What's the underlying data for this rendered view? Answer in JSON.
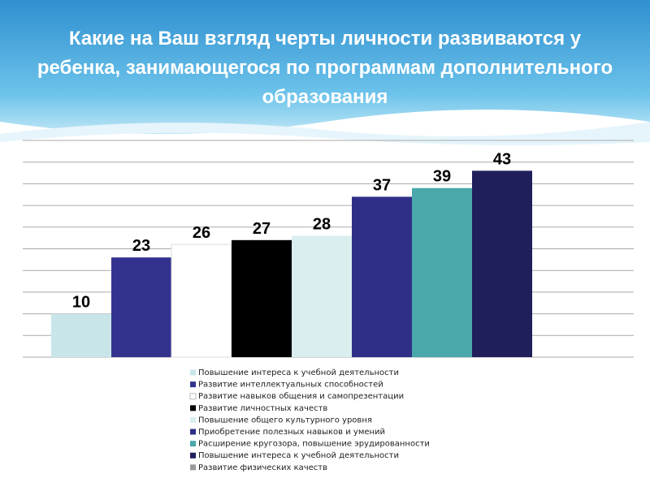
{
  "chart_data": {
    "type": "bar",
    "title": "Какие на Ваш взгляд черты личности развиваются у ребенка, занимающегося по программам дополнительного образования",
    "series": [
      {
        "name": "Повышение интереса к учебной деятельности",
        "color": "#c8e6e9",
        "values": [
          10
        ]
      },
      {
        "name": "Развитие интеллектуальных способностей",
        "color": "#33338f",
        "values": [
          23
        ]
      },
      {
        "name": "Развитие навыков общения и самопрезентации",
        "color": "#ffffff",
        "values": [
          26
        ]
      },
      {
        "name": "Развитие личностных качеств",
        "color": "#000000",
        "values": [
          27
        ]
      },
      {
        "name": "Повышение общего культурного уровня",
        "color": "#daeef0",
        "values": [
          28
        ]
      },
      {
        "name": "Приобретение полезных навыков и умений",
        "color": "#2f2f88",
        "values": [
          37
        ]
      },
      {
        "name": "Расширение кругозора, повышение эрудированности",
        "color": "#4aa7aa",
        "values": [
          39
        ]
      },
      {
        "name": "Повышение интереса  к учебной деятельности",
        "color": "#1f1f5c",
        "values": [
          43
        ]
      },
      {
        "name": "Развитие физических качеств",
        "color": "#999999",
        "values": [
          null
        ]
      }
    ],
    "ylim": [
      0,
      50
    ],
    "yticks": [
      0,
      5,
      10,
      15,
      20,
      25,
      30,
      35,
      40,
      45,
      50
    ],
    "grid": true
  }
}
